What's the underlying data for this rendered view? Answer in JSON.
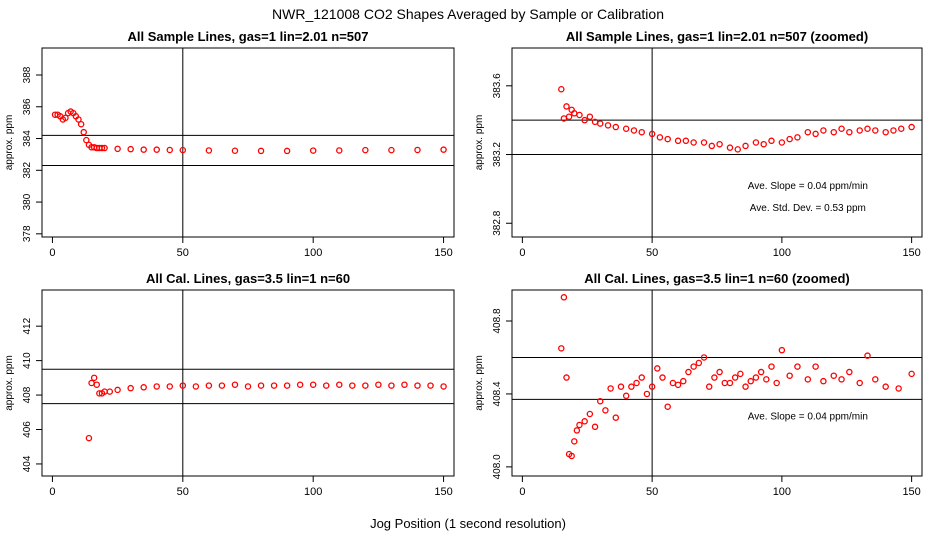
{
  "page": {
    "title": "NWR_121008  CO2 Shapes Averaged by Sample or Calibration",
    "xlabel": "Jog Position (1 second resolution)"
  },
  "chart_data": [
    {
      "id": "p1",
      "type": "scatter",
      "title": "All Sample Lines, gas=1 lin=2.01 n=507",
      "ylabel": "approx. ppm",
      "xlim": [
        -4,
        154
      ],
      "ylim": [
        377.8,
        389.7
      ],
      "xticks": [
        0,
        50,
        100,
        150
      ],
      "xtick_labels": [
        "0",
        "50",
        "100",
        "150"
      ],
      "yticks": [
        378,
        380,
        382,
        384,
        386,
        388
      ],
      "ytick_labels": [
        "378",
        "380",
        "382",
        "384",
        "386",
        "388"
      ],
      "vline": 50,
      "hlines": [
        384.2,
        382.3
      ],
      "marker_color": "#ff0000",
      "series": [
        {
          "x": [
            1,
            2,
            3,
            4,
            5,
            6,
            7,
            8,
            9,
            10,
            11,
            12,
            13,
            14,
            15,
            16,
            17,
            18,
            19,
            20,
            25,
            30,
            35,
            40,
            45,
            50,
            60,
            70,
            80,
            90,
            100,
            110,
            120,
            130,
            140,
            150
          ],
          "y": [
            385.5,
            385.5,
            385.4,
            385.2,
            385.3,
            385.6,
            385.7,
            385.6,
            385.4,
            385.2,
            384.9,
            384.4,
            383.9,
            383.6,
            383.45,
            383.45,
            383.4,
            383.4,
            383.4,
            383.4,
            383.35,
            383.33,
            383.3,
            383.3,
            383.28,
            383.27,
            383.25,
            383.23,
            383.22,
            383.22,
            383.24,
            383.25,
            383.27,
            383.27,
            383.28,
            383.3
          ]
        }
      ],
      "annotations": []
    },
    {
      "id": "p2",
      "type": "scatter",
      "title": "All Sample Lines, gas=1 lin=2.01 n=507 (zoomed)",
      "ylabel": "approx. ppm",
      "xlim": [
        -4,
        154
      ],
      "ylim": [
        382.72,
        383.82
      ],
      "xticks": [
        0,
        50,
        100,
        150
      ],
      "xtick_labels": [
        "0",
        "50",
        "100",
        "150"
      ],
      "yticks": [
        382.8,
        383.2,
        383.6
      ],
      "ytick_labels": [
        "382.8",
        "383.2",
        "383.6"
      ],
      "vline": 50,
      "hlines": [
        383.4,
        383.2
      ],
      "marker_color": "#ff0000",
      "series": [
        {
          "x": [
            15,
            16,
            17,
            18,
            19,
            20,
            22,
            24,
            26,
            28,
            30,
            33,
            36,
            40,
            43,
            46,
            50,
            53,
            56,
            60,
            63,
            66,
            70,
            73,
            76,
            80,
            83,
            86,
            90,
            93,
            96,
            100,
            103,
            106,
            110,
            113,
            116,
            120,
            123,
            126,
            130,
            133,
            136,
            140,
            143,
            146,
            150
          ],
          "y": [
            383.58,
            383.41,
            383.48,
            383.42,
            383.46,
            383.44,
            383.43,
            383.4,
            383.42,
            383.39,
            383.38,
            383.37,
            383.36,
            383.35,
            383.34,
            383.33,
            383.32,
            383.3,
            383.29,
            383.28,
            383.28,
            383.27,
            383.27,
            383.25,
            383.26,
            383.24,
            383.23,
            383.25,
            383.27,
            383.26,
            383.28,
            383.27,
            383.29,
            383.3,
            383.33,
            383.32,
            383.34,
            383.33,
            383.35,
            383.33,
            383.34,
            383.35,
            383.34,
            383.33,
            383.34,
            383.35,
            383.36
          ]
        }
      ],
      "annotations": [
        {
          "text": "Ave. Slope =  0.04  ppm/min",
          "x": 110,
          "y": 383.0
        },
        {
          "text": "Ave. Std. Dev. =  0.53  ppm",
          "x": 110,
          "y": 382.87
        }
      ]
    },
    {
      "id": "p3",
      "type": "scatter",
      "title": "All Cal. Lines, gas=3.5 lin=1 n=60",
      "ylabel": "approx. ppm",
      "xlim": [
        -4,
        154
      ],
      "ylim": [
        403.3,
        414.1
      ],
      "xticks": [
        0,
        50,
        100,
        150
      ],
      "xtick_labels": [
        "0",
        "50",
        "100",
        "150"
      ],
      "yticks": [
        404,
        406,
        408,
        410,
        412
      ],
      "ytick_labels": [
        "404",
        "406",
        "408",
        "410",
        "412"
      ],
      "vline": 50,
      "hlines": [
        409.5,
        407.5
      ],
      "marker_color": "#ff0000",
      "series": [
        {
          "x": [
            14,
            15,
            16,
            17,
            18,
            19,
            20,
            22,
            25,
            30,
            35,
            40,
            45,
            50,
            55,
            60,
            65,
            70,
            75,
            80,
            85,
            90,
            95,
            100,
            105,
            110,
            115,
            120,
            125,
            130,
            135,
            140,
            145,
            150
          ],
          "y": [
            405.5,
            408.7,
            409.0,
            408.6,
            408.1,
            408.1,
            408.2,
            408.2,
            408.3,
            408.4,
            408.45,
            408.5,
            408.5,
            408.55,
            408.5,
            408.55,
            408.55,
            408.6,
            408.5,
            408.55,
            408.55,
            408.55,
            408.6,
            408.6,
            408.55,
            408.6,
            408.55,
            408.55,
            408.6,
            408.55,
            408.6,
            408.55,
            408.55,
            408.5
          ]
        }
      ],
      "annotations": []
    },
    {
      "id": "p4",
      "type": "scatter",
      "title": "All Cal. Lines, gas=3.5 lin=1 n=60 (zoomed)",
      "ylabel": "approx. ppm",
      "xlim": [
        -4,
        154
      ],
      "ylim": [
        407.95,
        408.97
      ],
      "xticks": [
        0,
        50,
        100,
        150
      ],
      "xtick_labels": [
        "0",
        "50",
        "100",
        "150"
      ],
      "yticks": [
        408.0,
        408.4,
        408.8
      ],
      "ytick_labels": [
        "408.0",
        "408.4",
        "408.8"
      ],
      "vline": 50,
      "hlines": [
        408.6,
        408.37
      ],
      "marker_color": "#ff0000",
      "series": [
        {
          "x": [
            15,
            16,
            17,
            18,
            19,
            20,
            21,
            22,
            24,
            26,
            28,
            30,
            32,
            34,
            36,
            38,
            40,
            42,
            44,
            46,
            48,
            50,
            52,
            54,
            56,
            58,
            60,
            62,
            64,
            66,
            68,
            70,
            72,
            74,
            76,
            78,
            80,
            82,
            84,
            86,
            88,
            90,
            92,
            94,
            96,
            98,
            100,
            103,
            106,
            110,
            113,
            116,
            120,
            123,
            126,
            130,
            133,
            136,
            140,
            145,
            150
          ],
          "y": [
            408.65,
            408.93,
            408.49,
            408.07,
            408.06,
            408.14,
            408.2,
            408.23,
            408.25,
            408.29,
            408.22,
            408.36,
            408.31,
            408.43,
            408.27,
            408.44,
            408.39,
            408.44,
            408.46,
            408.49,
            408.4,
            408.44,
            408.54,
            408.49,
            408.33,
            408.46,
            408.45,
            408.47,
            408.52,
            408.55,
            408.57,
            408.6,
            408.44,
            408.49,
            408.52,
            408.46,
            408.46,
            408.49,
            408.51,
            408.44,
            408.47,
            408.49,
            408.52,
            408.48,
            408.55,
            408.46,
            408.64,
            408.5,
            408.55,
            408.48,
            408.55,
            408.47,
            408.5,
            408.48,
            408.52,
            408.46,
            408.61,
            408.48,
            408.44,
            408.43,
            408.51
          ]
        }
      ],
      "annotations": [
        {
          "text": "Ave. Slope =  0.04  ppm/min",
          "x": 110,
          "y": 408.26
        }
      ]
    }
  ]
}
